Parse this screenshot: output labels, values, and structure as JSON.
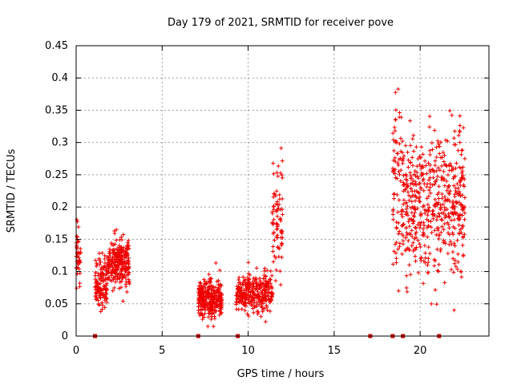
{
  "chart_data": {
    "type": "scatter",
    "title": "Day 179 of 2021, SRMTID for receiver pove",
    "xlabel": "GPS time / hours",
    "ylabel": "SRMTID / TECUs",
    "xlim": [
      0,
      24
    ],
    "ylim": [
      0,
      0.45
    ],
    "xticks": [
      0,
      5,
      10,
      15,
      20
    ],
    "yticks": [
      0,
      0.05,
      0.1,
      0.15,
      0.2,
      0.25,
      0.3,
      0.35,
      0.4,
      0.45
    ],
    "marker": "+",
    "color": "#ee0000",
    "grid": true,
    "x_markers_at_zero": [
      1.1,
      7.1,
      9.4,
      17.1,
      18.4,
      19.0,
      21.1
    ],
    "clusters": [
      {
        "x_range": [
          0.0,
          0.25
        ],
        "y_mean": 0.125,
        "y_sd": 0.025,
        "n": 40
      },
      {
        "x_range": [
          1.1,
          1.8
        ],
        "y_mean": 0.085,
        "y_sd": 0.02,
        "n": 130
      },
      {
        "x_range": [
          1.8,
          3.1
        ],
        "y_mean": 0.11,
        "y_sd": 0.02,
        "n": 260
      },
      {
        "x_range": [
          7.1,
          8.5
        ],
        "y_mean": 0.06,
        "y_sd": 0.014,
        "n": 300
      },
      {
        "x_range": [
          9.3,
          11.4
        ],
        "y_mean": 0.065,
        "y_sd": 0.015,
        "n": 320
      },
      {
        "x_range": [
          11.4,
          12.0
        ],
        "y_mean": 0.17,
        "y_sd": 0.05,
        "n": 80
      },
      {
        "x_range": [
          18.4,
          19.0
        ],
        "y_mean": 0.24,
        "y_sd": 0.08,
        "n": 80
      },
      {
        "x_range": [
          19.0,
          22.6
        ],
        "y_mean": 0.205,
        "y_sd": 0.055,
        "n": 520
      }
    ]
  }
}
